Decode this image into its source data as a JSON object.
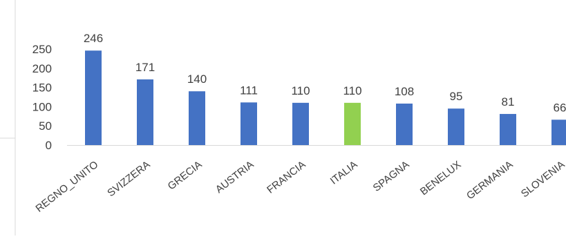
{
  "chart_data": {
    "type": "bar",
    "title": "",
    "xlabel": "",
    "ylabel": "",
    "categories": [
      "REGNO_UNITO",
      "SVIZZERA",
      "GRECIA",
      "AUSTRIA",
      "FRANCIA",
      "ITALIA",
      "SPAGNA",
      "BENELUX",
      "GERMANIA",
      "SLOVENIA"
    ],
    "values": [
      246,
      171,
      140,
      111,
      110,
      110,
      108,
      95,
      81,
      66
    ],
    "ylim": [
      0,
      250
    ],
    "yticks": [
      0,
      50,
      100,
      150,
      200,
      250
    ],
    "data_labels": true,
    "grid": false,
    "legend": "none",
    "colors": {
      "default": "#4472C4",
      "highlight": "#92D050",
      "highlight_category": "ITALIA",
      "axis": "#d9d9d9",
      "text": "#404040"
    }
  }
}
